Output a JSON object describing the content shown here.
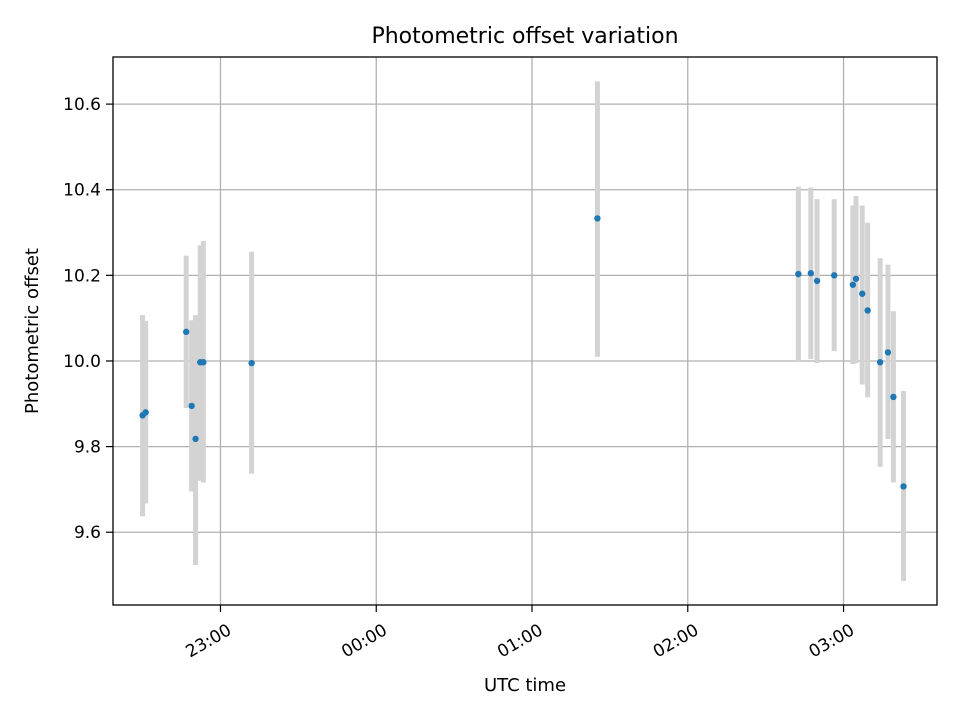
{
  "chart_data": {
    "type": "scatter",
    "title": "Photometric offset variation",
    "xlabel": "UTC time",
    "ylabel": "Photometric offset",
    "grid": true,
    "legend": "none",
    "x_unit": "UTC time of day (hours; values above 24 are after midnight)",
    "xlim": [
      22.31,
      27.6
    ],
    "ylim": [
      9.43,
      10.71
    ],
    "x_ticks": [
      {
        "value": 23.0,
        "label": "23:00"
      },
      {
        "value": 24.0,
        "label": "00:00"
      },
      {
        "value": 25.0,
        "label": "01:00"
      },
      {
        "value": 26.0,
        "label": "02:00"
      },
      {
        "value": 27.0,
        "label": "03:00"
      }
    ],
    "y_ticks": [
      {
        "value": 9.6,
        "label": "9.6"
      },
      {
        "value": 9.8,
        "label": "9.8"
      },
      {
        "value": 10.0,
        "label": "10.0"
      },
      {
        "value": 10.2,
        "label": "10.2"
      },
      {
        "value": 10.4,
        "label": "10.4"
      },
      {
        "value": 10.6,
        "label": "10.6"
      }
    ],
    "colors": {
      "point": "#1f77b4",
      "errorbar": "#d3d3d3"
    },
    "series": [
      {
        "points": [
          {
            "x": 22.5,
            "y": 9.873,
            "ylow": 9.637,
            "yhigh": 10.107
          },
          {
            "x": 22.52,
            "y": 9.88,
            "ylow": 9.667,
            "yhigh": 10.093
          },
          {
            "x": 22.78,
            "y": 10.068,
            "ylow": 9.89,
            "yhigh": 10.246
          },
          {
            "x": 22.815,
            "y": 9.895,
            "ylow": 9.695,
            "yhigh": 10.095
          },
          {
            "x": 22.84,
            "y": 9.818,
            "ylow": 9.523,
            "yhigh": 10.107
          },
          {
            "x": 22.87,
            "y": 9.997,
            "ylow": 9.72,
            "yhigh": 10.27
          },
          {
            "x": 22.89,
            "y": 9.997,
            "ylow": 9.716,
            "yhigh": 10.28
          },
          {
            "x": 23.2,
            "y": 9.995,
            "ylow": 9.737,
            "yhigh": 10.255
          },
          {
            "x": 25.42,
            "y": 10.333,
            "ylow": 10.01,
            "yhigh": 10.653
          },
          {
            "x": 26.71,
            "y": 10.203,
            "ylow": 9.998,
            "yhigh": 10.407
          },
          {
            "x": 26.79,
            "y": 10.205,
            "ylow": 10.005,
            "yhigh": 10.405
          },
          {
            "x": 26.83,
            "y": 10.187,
            "ylow": 9.995,
            "yhigh": 10.378
          },
          {
            "x": 26.94,
            "y": 10.2,
            "ylow": 10.023,
            "yhigh": 10.378
          },
          {
            "x": 27.06,
            "y": 10.178,
            "ylow": 9.993,
            "yhigh": 10.363
          },
          {
            "x": 27.08,
            "y": 10.192,
            "ylow": 9.995,
            "yhigh": 10.385
          },
          {
            "x": 27.12,
            "y": 10.157,
            "ylow": 9.945,
            "yhigh": 10.363
          },
          {
            "x": 27.155,
            "y": 10.118,
            "ylow": 9.915,
            "yhigh": 10.323
          },
          {
            "x": 27.235,
            "y": 9.997,
            "ylow": 9.753,
            "yhigh": 10.24
          },
          {
            "x": 27.285,
            "y": 10.02,
            "ylow": 9.818,
            "yhigh": 10.225
          },
          {
            "x": 27.32,
            "y": 9.916,
            "ylow": 9.716,
            "yhigh": 10.116
          },
          {
            "x": 27.385,
            "y": 9.707,
            "ylow": 9.486,
            "yhigh": 9.93
          }
        ]
      }
    ]
  }
}
